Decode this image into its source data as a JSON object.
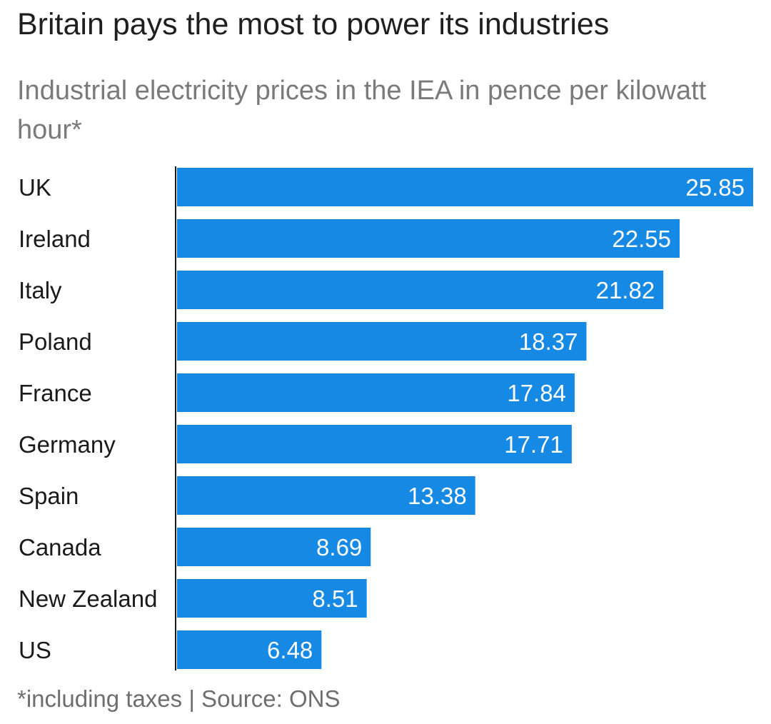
{
  "title": "Britain pays the most to power its industries",
  "subtitle": "Industrial electricity prices in the IEA in pence per kilowatt hour*",
  "footnote": "*including taxes | Source: ONS",
  "colors": {
    "bar": "#1589e3",
    "bar_label": "#ffffff",
    "axis": "#1a1a1a",
    "category_label": "#1a1a1a"
  },
  "chart_data": {
    "type": "bar",
    "orientation": "horizontal",
    "categories": [
      "UK",
      "Ireland",
      "Italy",
      "Poland",
      "France",
      "Germany",
      "Spain",
      "Canada",
      "New Zealand",
      "US"
    ],
    "values": [
      25.85,
      22.55,
      21.82,
      18.37,
      17.84,
      17.71,
      13.38,
      8.69,
      8.51,
      6.48
    ],
    "value_labels": [
      "25.85",
      "22.55",
      "21.82",
      "18.37",
      "17.84",
      "17.71",
      "13.38",
      "8.69",
      "8.51",
      "6.48"
    ],
    "xlim": [
      0,
      25.85
    ],
    "grid": false,
    "legend": "none"
  }
}
